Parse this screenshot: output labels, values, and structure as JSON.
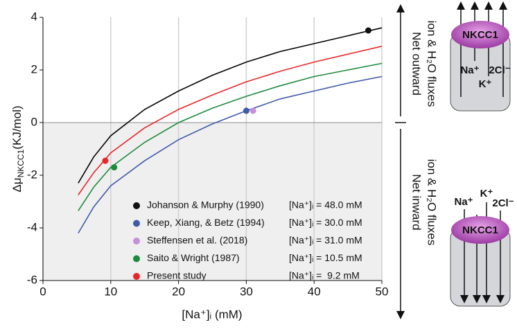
{
  "chart_data": {
    "type": "line",
    "y_label": {
      "symbol": "Δμ",
      "subscript": "NKCC1",
      "unit": "(KJ/mol)"
    },
    "x_label": "[Na⁺]ᵢ (mM)",
    "xlim": [
      0,
      50
    ],
    "xticks": [
      0,
      10,
      20,
      30,
      40,
      50
    ],
    "ylim": [
      -6,
      4
    ],
    "yticks": [
      -6,
      -4,
      -2,
      0,
      2,
      4
    ],
    "x_grid": true,
    "shade_below_zero": true,
    "x": [
      5.2,
      7.5,
      10,
      15,
      20,
      25,
      30,
      35,
      40,
      45,
      50
    ],
    "curves": [
      {
        "color": "#000000",
        "values": [
          -2.3,
          -1.3,
          -0.5,
          0.5,
          1.2,
          1.8,
          2.3,
          2.7,
          3.0,
          3.3,
          3.6
        ]
      },
      {
        "color": "#e8262b",
        "values": [
          -2.75,
          -1.9,
          -1.15,
          -0.2,
          0.5,
          1.05,
          1.55,
          1.95,
          2.3,
          2.6,
          2.9
        ]
      },
      {
        "color": "#1e8a3c",
        "values": [
          -3.35,
          -2.45,
          -1.7,
          -0.75,
          0.0,
          0.55,
          1.0,
          1.4,
          1.75,
          2.0,
          2.25
        ]
      },
      {
        "color": "#3f5aa8",
        "values": [
          -4.2,
          -3.2,
          -2.4,
          -1.45,
          -0.65,
          -0.05,
          0.45,
          0.9,
          1.2,
          1.5,
          1.75
        ]
      }
    ],
    "points": [
      {
        "name": "Johanson & Murphy (1990)",
        "color": "#111111",
        "x": 48,
        "y": 3.5,
        "label": "[Na⁺]ᵢ = 48.0 mM"
      },
      {
        "name": "Keep, Xiang, & Betz (1994)",
        "color": "#3f5aa8",
        "x": 30,
        "y": 0.45,
        "label": "[Na⁺]ᵢ = 30.0 mM"
      },
      {
        "name": "Steffensen et al. (2018)",
        "color": "#c58fdb",
        "x": 31,
        "y": 0.45,
        "label": "[Na⁺]ᵢ = 31.0 mM"
      },
      {
        "name": "Saito & Wright (1987)",
        "color": "#1e8a3c",
        "x": 10.5,
        "y": -1.7,
        "label": "[Na⁺]ᵢ = 10.5 mM"
      },
      {
        "name": "Present study",
        "color": "#e8262b",
        "x": 9.2,
        "y": -1.45,
        "label": "[Na⁺]ᵢ =  9.2 mM"
      }
    ]
  },
  "side_panel": {
    "outward": {
      "line1": "Net outward",
      "line2": "ion & H₂O fluxes"
    },
    "inward": {
      "line1": "Net inward",
      "line2": "ion & H₂O fluxes"
    },
    "transporter": "NKCC1",
    "ions": {
      "na": "Na⁺",
      "k": "K⁺",
      "cl": "2Cl⁻"
    }
  }
}
